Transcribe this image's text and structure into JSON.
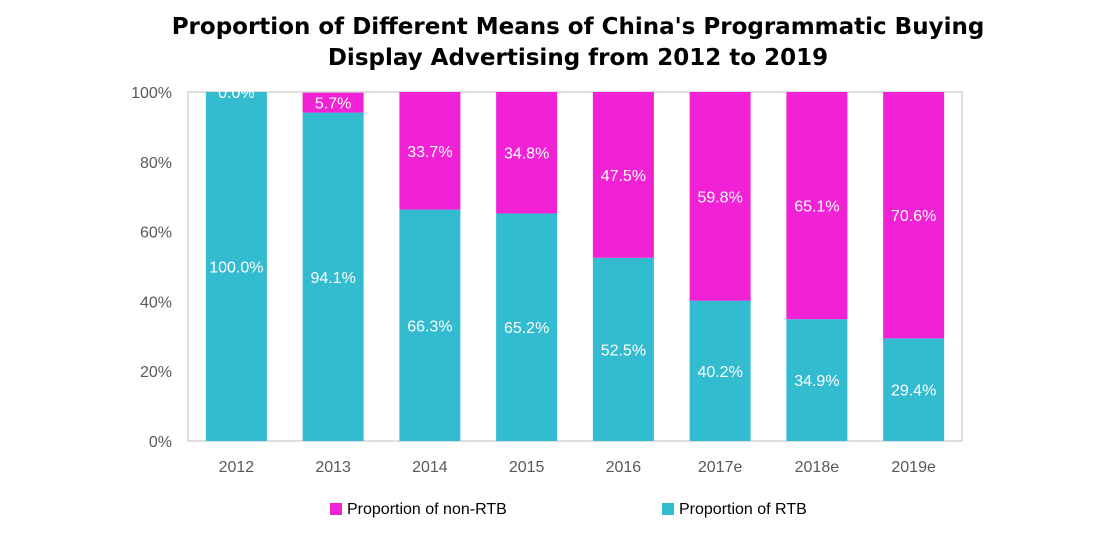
{
  "chart_data": {
    "type": "bar",
    "stacked": true,
    "title_lines": [
      "Proportion of Different Means of China's Programmatic Buying",
      "Display Advertising from 2012 to 2019"
    ],
    "categories": [
      "2012",
      "2013",
      "2014",
      "2015",
      "2016",
      "2017e",
      "2018e",
      "2019e"
    ],
    "series": [
      {
        "name": "Proportion of RTB",
        "color": "#33BCD0",
        "values": [
          100.0,
          94.1,
          66.3,
          65.2,
          52.5,
          40.2,
          34.9,
          29.4
        ],
        "labels": [
          "100.0%",
          "94.1%",
          "66.3%",
          "65.2%",
          "52.5%",
          "40.2%",
          "34.9%",
          "29.4%"
        ]
      },
      {
        "name": "Proportion of non-RTB",
        "color": "#F121D6",
        "values": [
          0.0,
          5.7,
          33.7,
          34.8,
          47.5,
          59.8,
          65.1,
          70.6
        ],
        "labels": [
          "0.0%",
          "5.7%",
          "33.7%",
          "34.8%",
          "47.5%",
          "59.8%",
          "65.1%",
          "70.6%"
        ]
      }
    ],
    "ylim": [
      0,
      100
    ],
    "yticks": [
      "0%",
      "20%",
      "40%",
      "60%",
      "80%",
      "100%"
    ],
    "grid": false,
    "legend": [
      "Proportion of non-RTB",
      "Proportion of RTB"
    ],
    "legend_position": "bottom"
  }
}
